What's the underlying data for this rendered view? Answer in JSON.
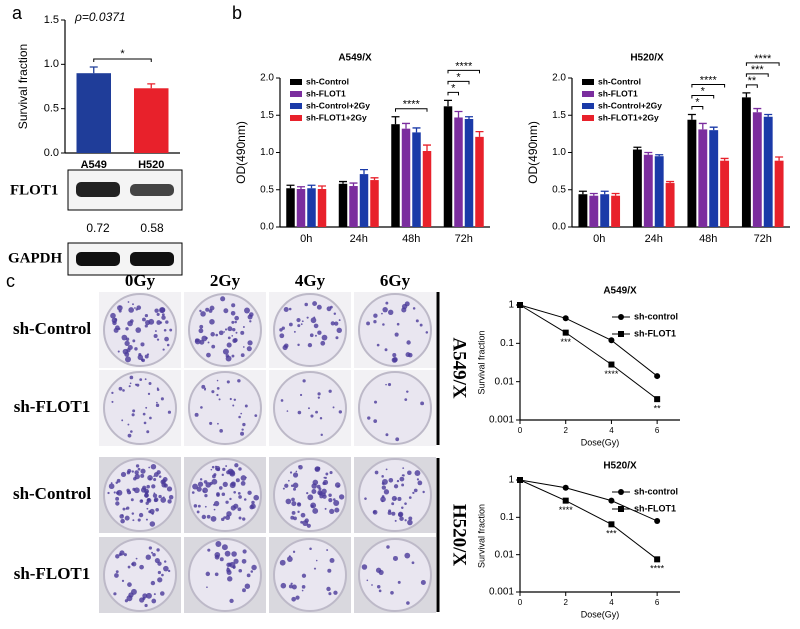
{
  "panels": [
    "a",
    "b",
    "c"
  ],
  "blot": {
    "rows": [
      "FLOT1",
      "GAPDH"
    ],
    "ratios": [
      0.72,
      0.58
    ]
  },
  "colony": {
    "columns": [
      "0Gy",
      "2Gy",
      "4Gy",
      "6Gy"
    ],
    "rows": [
      "sh-Control",
      "sh-FLOT1",
      "sh-Control",
      "sh-FLOT1"
    ],
    "groups": [
      "A549/X",
      "H520/X"
    ]
  },
  "chart_data": [
    {
      "type": "bar",
      "ylabel": "Survival fraction",
      "categories": [
        "A549",
        "H520"
      ],
      "values": [
        0.9,
        0.73
      ],
      "errors": [
        0.07,
        0.05
      ],
      "colors": [
        "#1f3d99",
        "#e8212b"
      ],
      "ylim": [
        0,
        1.5
      ],
      "yticks": [
        {
          "value": 0,
          "label": "0.0"
        },
        0.5,
        {
          "value": 1,
          "label": "1.0"
        },
        1.5
      ],
      "p_value": "ρ=0.0371",
      "annotations": [
        "*"
      ]
    },
    {
      "type": "bar",
      "title": "A549/X",
      "ylabel": "OD(490nm)",
      "categories": [
        "0h",
        "24h",
        "48h",
        "72h"
      ],
      "series": [
        {
          "name": "sh-Control",
          "color": "#000000",
          "values": [
            0.52,
            0.58,
            1.38,
            1.62
          ],
          "errors": [
            0.04,
            0.03,
            0.1,
            0.08
          ]
        },
        {
          "name": "sh-FLOT1",
          "color": "#7b2d9e",
          "values": [
            0.51,
            0.55,
            1.32,
            1.47
          ],
          "errors": [
            0.03,
            0.04,
            0.07,
            0.08
          ]
        },
        {
          "name": "sh-Control+2Gy",
          "color": "#1a3aa8",
          "values": [
            0.52,
            0.71,
            1.27,
            1.45
          ],
          "errors": [
            0.04,
            0.06,
            0.06,
            0.03
          ]
        },
        {
          "name": "sh-FLOT1+2Gy",
          "color": "#e8212b",
          "values": [
            0.51,
            0.63,
            1.02,
            1.21
          ],
          "errors": [
            0.04,
            0.03,
            0.08,
            0.07
          ]
        }
      ],
      "ylim": [
        0,
        2
      ],
      "yticks": [
        {
          "value": 0,
          "label": "0.0"
        },
        0.5,
        {
          "value": 1,
          "label": "1.0"
        },
        1.5,
        {
          "value": 2,
          "label": "2.0"
        }
      ],
      "annotations": [
        "****",
        "*",
        "*",
        "****"
      ]
    },
    {
      "type": "bar",
      "title": "H520/X",
      "ylabel": "OD(490nm)",
      "categories": [
        "0h",
        "24h",
        "48h",
        "72h"
      ],
      "series": [
        {
          "name": "sh-Control",
          "color": "#000000",
          "values": [
            0.44,
            1.04,
            1.44,
            1.74
          ],
          "errors": [
            0.04,
            0.03,
            0.07,
            0.06
          ]
        },
        {
          "name": "sh-FLOT1",
          "color": "#7b2d9e",
          "values": [
            0.42,
            0.97,
            1.31,
            1.54
          ],
          "errors": [
            0.03,
            0.03,
            0.08,
            0.05
          ]
        },
        {
          "name": "sh-Control+2Gy",
          "color": "#1a3aa8",
          "values": [
            0.44,
            0.95,
            1.3,
            1.48
          ],
          "errors": [
            0.04,
            0.02,
            0.04,
            0.03
          ]
        },
        {
          "name": "sh-FLOT1+2Gy",
          "color": "#e8212b",
          "values": [
            0.42,
            0.59,
            0.89,
            0.89
          ],
          "errors": [
            0.03,
            0.02,
            0.03,
            0.05
          ]
        }
      ],
      "ylim": [
        0,
        2
      ],
      "yticks": [
        {
          "value": 0,
          "label": "0.0"
        },
        0.5,
        {
          "value": 1,
          "label": "1.0"
        },
        1.5,
        {
          "value": 2,
          "label": "2.0"
        }
      ],
      "annotations": [
        "*",
        "*",
        "****",
        "**",
        "***",
        "****"
      ]
    },
    {
      "type": "line",
      "title": "A549/X",
      "xlabel": "Dose(Gy)",
      "ylabel": "Survival fraction",
      "x": [
        0,
        2,
        4,
        6
      ],
      "xlim": [
        0,
        7
      ],
      "xticks": [
        0,
        2,
        4,
        6
      ],
      "yscale": "log",
      "ylim": [
        0.001,
        1
      ],
      "yticks": [
        0.001,
        0.01,
        0.1,
        1
      ],
      "series": [
        {
          "name": "sh-control",
          "color": "#000000",
          "marker": "circle",
          "values": [
            1,
            0.45,
            0.12,
            0.014
          ]
        },
        {
          "name": "sh-FLOT1",
          "color": "#000000",
          "marker": "square",
          "values": [
            1,
            0.19,
            0.028,
            0.0035
          ]
        }
      ],
      "annotations": [
        "***",
        "****",
        "**"
      ]
    },
    {
      "type": "line",
      "title": "H520/X",
      "xlabel": "Dose(Gy)",
      "ylabel": "Survival fraction",
      "x": [
        0,
        2,
        4,
        6
      ],
      "xlim": [
        0,
        7
      ],
      "xticks": [
        0,
        2,
        4,
        6
      ],
      "yscale": "log",
      "ylim": [
        0.001,
        1
      ],
      "yticks": [
        0.001,
        0.01,
        0.1,
        1
      ],
      "series": [
        {
          "name": "sh-control",
          "color": "#000000",
          "marker": "circle",
          "values": [
            1,
            0.62,
            0.28,
            0.08
          ]
        },
        {
          "name": "sh-FLOT1",
          "color": "#000000",
          "marker": "square",
          "values": [
            1,
            0.28,
            0.065,
            0.0075
          ]
        }
      ],
      "annotations": [
        "****",
        "***",
        "****"
      ]
    }
  ]
}
